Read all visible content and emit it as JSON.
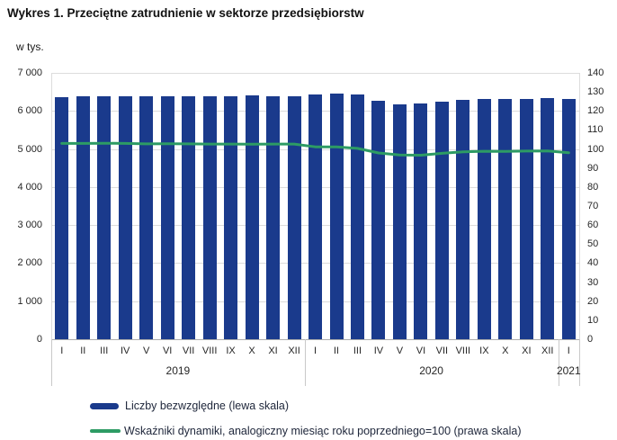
{
  "title": "Wykres 1. Przeciętne zatrudnienie w sektorze przedsiębiorstw",
  "colors": {
    "bar": "#1a3a8c",
    "line": "#2d9b64",
    "grid": "#dcdcdc",
    "axis_text": "#262626"
  },
  "chart_data": {
    "type": "bar",
    "title": "Wykres 1. Przeciętne zatrudnienie w sektorze przedsiębiorstw",
    "unit_label": "w tys.",
    "categories": [
      "I",
      "II",
      "III",
      "IV",
      "V",
      "VI",
      "VII",
      "VIII",
      "IX",
      "X",
      "XI",
      "XII",
      "I",
      "II",
      "III",
      "IV",
      "V",
      "VI",
      "VII",
      "VIII",
      "IX",
      "X",
      "XI",
      "XII",
      "I"
    ],
    "year_groups": [
      {
        "label": "2019",
        "span": 12
      },
      {
        "label": "2020",
        "span": 12
      },
      {
        "label": "2021",
        "span": 1
      }
    ],
    "series": [
      {
        "name": "Liczby bezwzględne (lewa skala)",
        "type": "bar",
        "axis": "left",
        "color": "#1a3a8c",
        "values": [
          6368,
          6378,
          6393,
          6392,
          6381,
          6394,
          6397,
          6390,
          6387,
          6403,
          6395,
          6396,
          6440,
          6446,
          6440,
          6259,
          6173,
          6186,
          6252,
          6295,
          6312,
          6318,
          6319,
          6329,
          6314
        ]
      },
      {
        "name": "Wskaźniki dynamiki, analogiczny miesiąc roku poprzedniego=100 (prawa skala)",
        "type": "line",
        "axis": "right",
        "color": "#2d9b64",
        "values": [
          102.9,
          102.9,
          103.0,
          102.9,
          102.7,
          102.8,
          102.7,
          102.6,
          102.6,
          102.5,
          102.6,
          102.6,
          101.1,
          101.1,
          100.3,
          97.9,
          96.8,
          96.7,
          97.7,
          98.5,
          98.8,
          98.7,
          98.9,
          99.0,
          98.0
        ]
      }
    ],
    "left_axis": {
      "min": 0,
      "max": 7000,
      "step": 1000,
      "tick_labels": [
        "7 000",
        "6 000",
        "5 000",
        "4 000",
        "3 000",
        "2 000",
        "1 000",
        "0"
      ]
    },
    "right_axis": {
      "min": 0,
      "max": 140,
      "step": 10,
      "tick_labels": [
        "140",
        "130",
        "120",
        "110",
        "100",
        "90",
        "80",
        "70",
        "60",
        "50",
        "40",
        "30",
        "20",
        "10",
        "0"
      ]
    },
    "grid": true,
    "legend_position": "bottom"
  }
}
